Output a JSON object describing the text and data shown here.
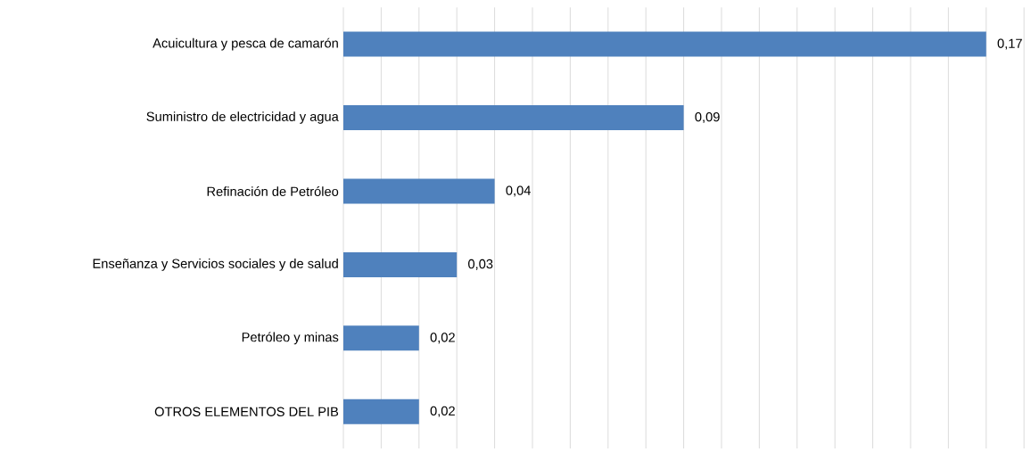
{
  "chart_data": {
    "type": "bar",
    "orientation": "horizontal",
    "categories": [
      "Acuicultura y pesca de camarón",
      "Suministro de electricidad y agua",
      "Refinación de Petróleo",
      "Enseñanza  y Servicios sociales y de salud",
      "Petróleo y minas",
      "OTROS ELEMENTOS DEL PIB"
    ],
    "values": [
      0.17,
      0.09,
      0.04,
      0.03,
      0.02,
      0.02
    ],
    "value_labels": [
      "0,17",
      "0,09",
      "0,04",
      "0,03",
      "0,02",
      "0,02"
    ],
    "color": "#4f81bd",
    "grid": "x",
    "tick_labels": "y"
  }
}
